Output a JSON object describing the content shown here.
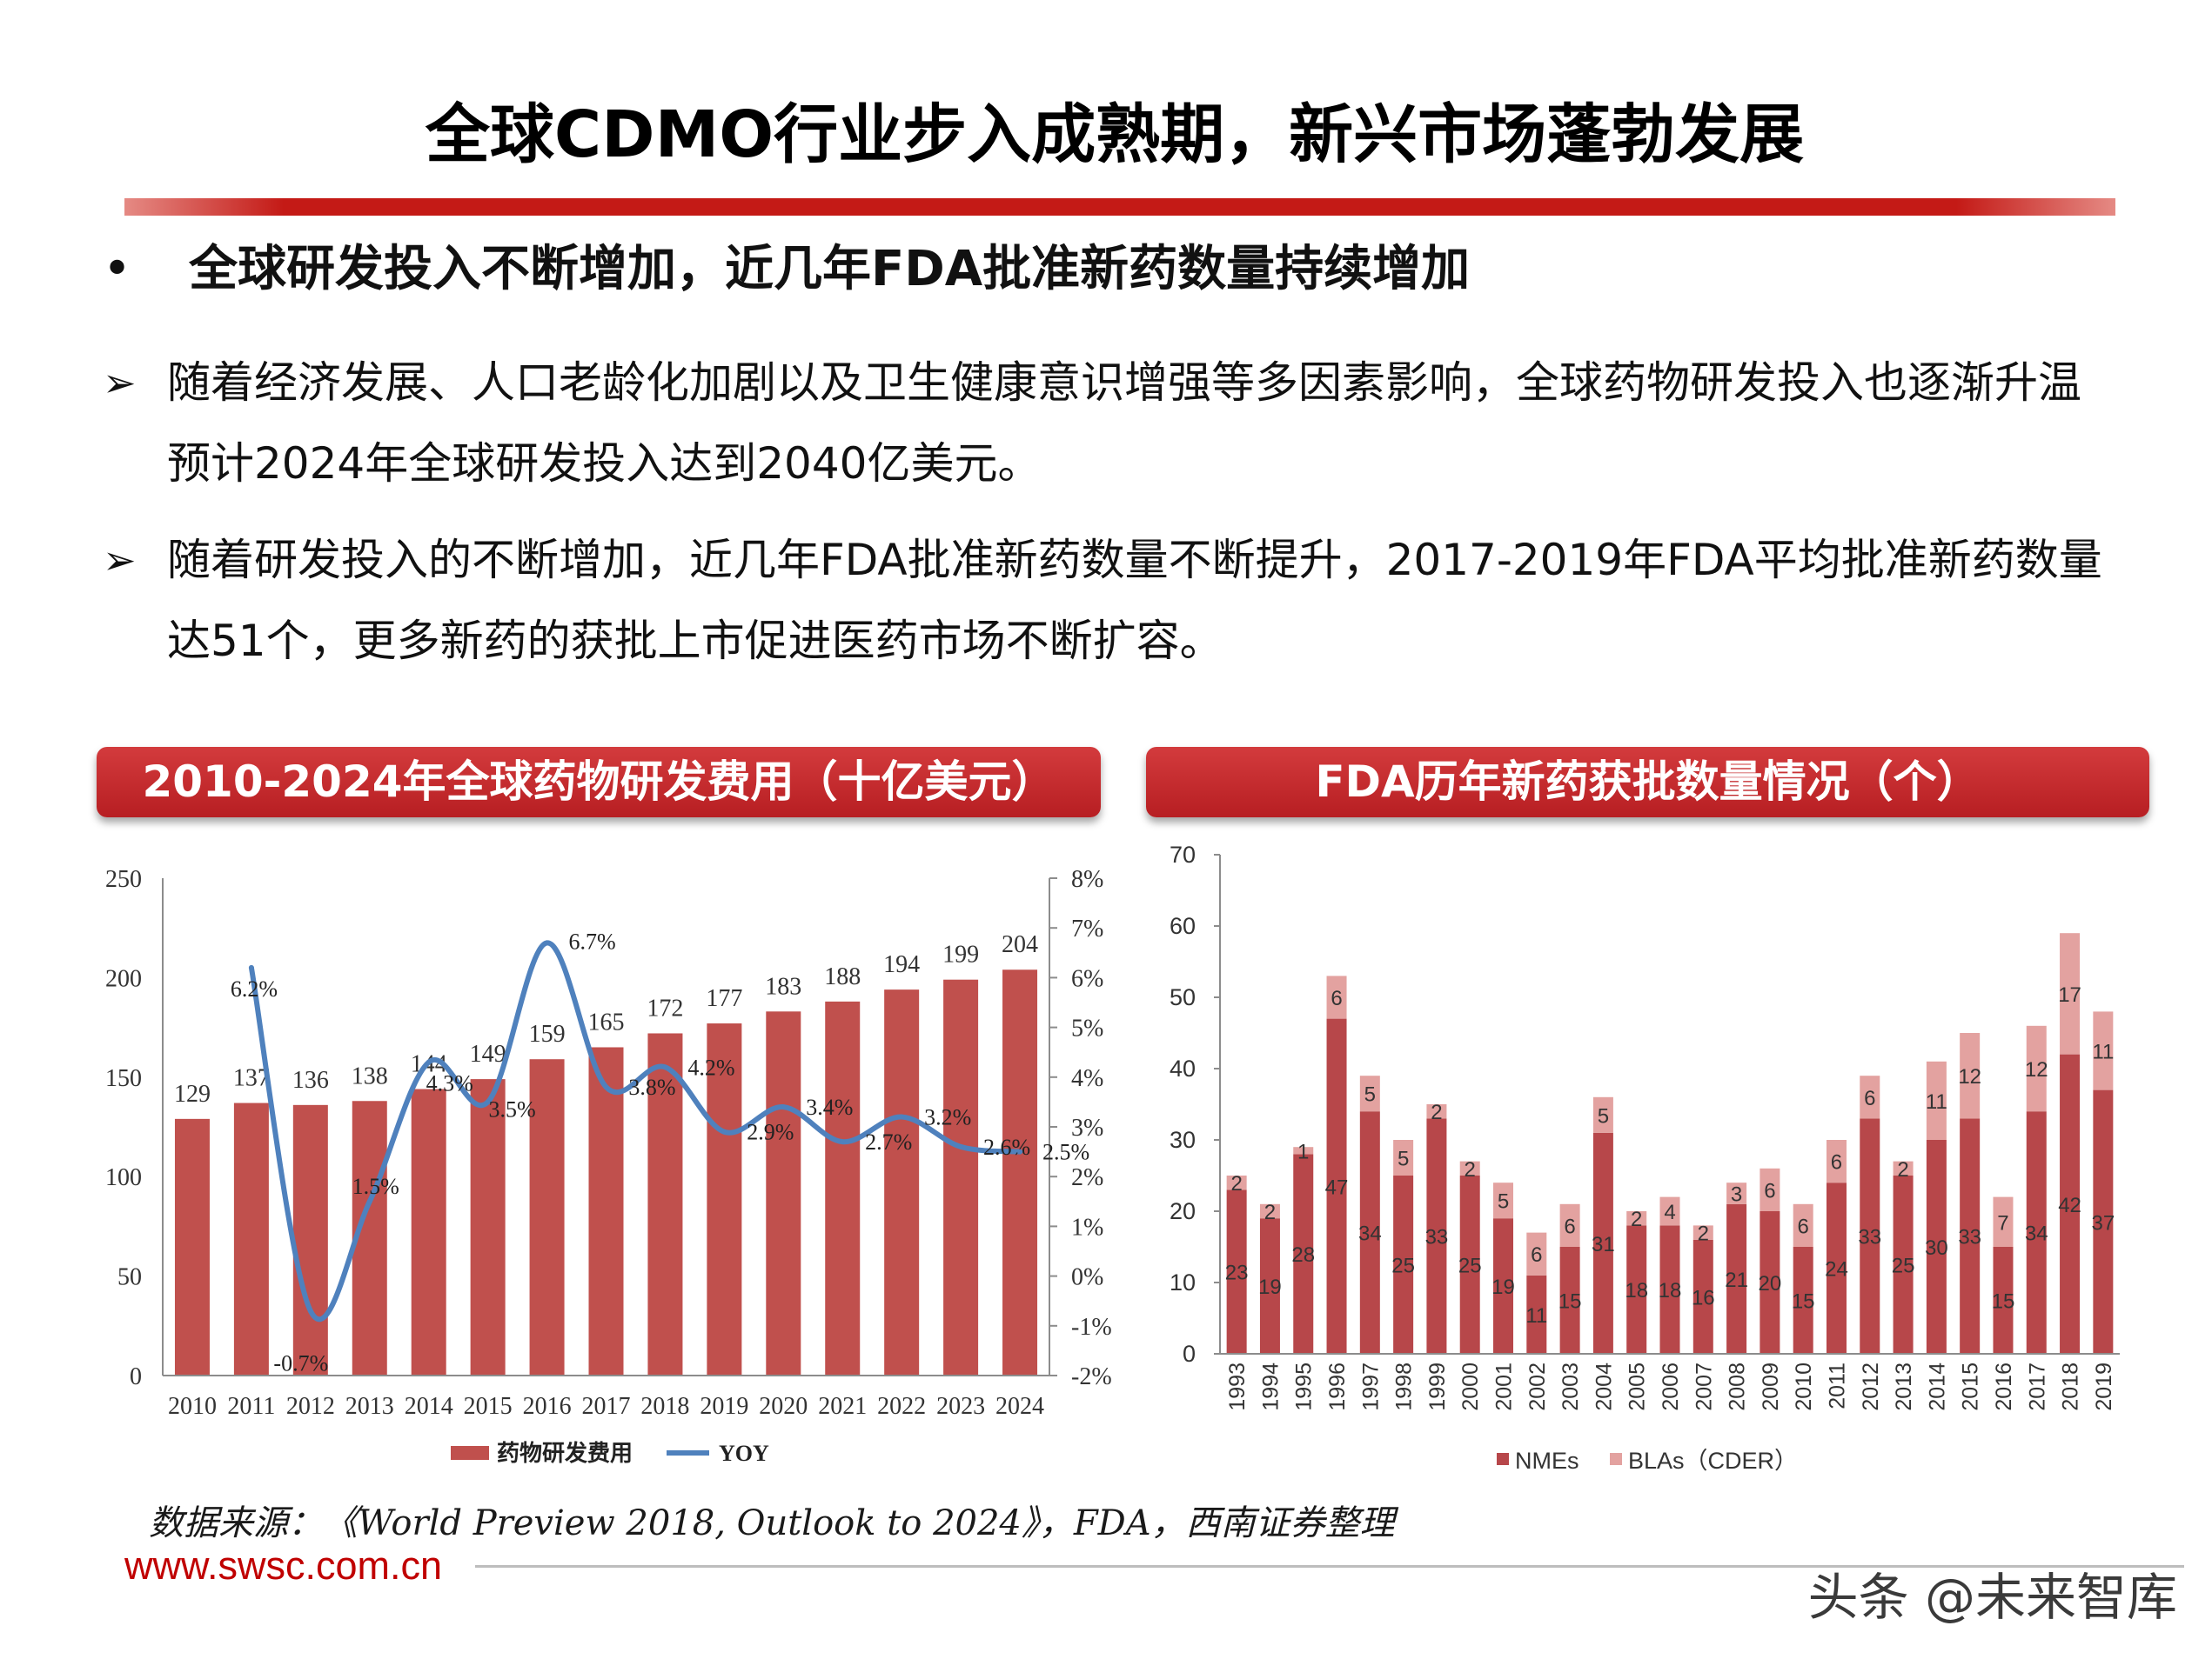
{
  "slide": {
    "title": "全球CDMO行业步入成熟期，新兴市场蓬勃发展",
    "headline_marker": "•",
    "headline": "全球研发投入不断增加，近几年FDA批准新药数量持续增加",
    "points": [
      {
        "marker": "➢",
        "lines": [
          "随着经济发展、人口老龄化加剧以及卫生健康意识增强等多因素影响，全球药物研发投入也逐渐升温",
          "预计2024年全球研发投入达到2040亿美元。"
        ]
      },
      {
        "marker": "➢",
        "lines": [
          "随着研发投入的不断增加，近几年FDA批准新药数量不断提升，2017-2019年FDA平均批准新药数量",
          "达51个，更多新药的获批上市促进医药市场不断扩容。"
        ]
      }
    ],
    "source": "数据来源：《World Preview 2018, Outlook to 2024》，FDA，西南证券整理",
    "website": "www.swsc.com.cn",
    "watermark": "头条 @未来智库",
    "colors": {
      "title_rule": "#c41a16",
      "banner": "#c8232a",
      "website": "#c00000"
    }
  },
  "chart_data": [
    {
      "type": "bar",
      "title": "2010-2024年全球药物研发费用（十亿美元）",
      "categories": [
        "2010",
        "2011",
        "2012",
        "2013",
        "2014",
        "2015",
        "2016",
        "2017",
        "2018",
        "2019",
        "2020",
        "2021",
        "2022",
        "2023",
        "2024"
      ],
      "series": [
        {
          "name": "药物研发费用",
          "type": "bar",
          "axis": "left",
          "color": "#c0504d",
          "values": [
            129,
            137,
            136,
            138,
            144,
            149,
            159,
            165,
            172,
            177,
            183,
            188,
            194,
            199,
            204
          ]
        },
        {
          "name": "YOY",
          "type": "line",
          "axis": "right",
          "smooth": true,
          "color": "#4f81bd",
          "values": [
            null,
            6.2,
            -0.7,
            1.5,
            4.3,
            3.5,
            6.7,
            3.8,
            4.2,
            2.9,
            3.4,
            2.7,
            3.2,
            2.6,
            2.5
          ],
          "labels": [
            null,
            "6.2%",
            "-0.7%",
            "1.5%",
            "4.3%",
            "3.5%",
            "6.7%",
            "3.8%",
            "4.2%",
            "2.9%",
            "3.4%",
            "2.7%",
            "3.2%",
            "2.6%",
            "2.5%"
          ]
        }
      ],
      "ylim": [
        0,
        250
      ],
      "yticks": [
        0,
        50,
        100,
        150,
        200,
        250
      ],
      "y2lim": [
        -2,
        8
      ],
      "y2ticks": [
        "-2%",
        "-1%",
        "0%",
        "1%",
        "2%",
        "3%",
        "4%",
        "5%",
        "6%",
        "7%",
        "8%"
      ],
      "grid": false,
      "legend": "bottom"
    },
    {
      "type": "bar",
      "stacked": true,
      "title": "FDA历年新药获批数量情况（个）",
      "categories": [
        "1993",
        "1994",
        "1995",
        "1996",
        "1997",
        "1998",
        "1999",
        "2000",
        "2001",
        "2002",
        "2003",
        "2004",
        "2005",
        "2006",
        "2007",
        "2008",
        "2009",
        "2010",
        "2011",
        "2012",
        "2013",
        "2014",
        "2015",
        "2016",
        "2017",
        "2018",
        "2019"
      ],
      "series": [
        {
          "name": "NMEs",
          "color": "#b7474a",
          "values": [
            23,
            19,
            28,
            47,
            34,
            25,
            33,
            25,
            19,
            11,
            15,
            31,
            18,
            18,
            16,
            21,
            20,
            15,
            24,
            33,
            25,
            30,
            33,
            15,
            34,
            42,
            37
          ]
        },
        {
          "name": "BLAs（CDER）",
          "color": "#e3a2a0",
          "values": [
            2,
            2,
            1,
            6,
            5,
            5,
            2,
            2,
            5,
            6,
            6,
            5,
            2,
            4,
            2,
            3,
            6,
            6,
            6,
            6,
            2,
            11,
            12,
            7,
            12,
            17,
            11
          ]
        }
      ],
      "ylim": [
        0,
        70
      ],
      "yticks": [
        0,
        10,
        20,
        30,
        40,
        50,
        60,
        70
      ],
      "grid": false,
      "legend": "bottom"
    }
  ]
}
